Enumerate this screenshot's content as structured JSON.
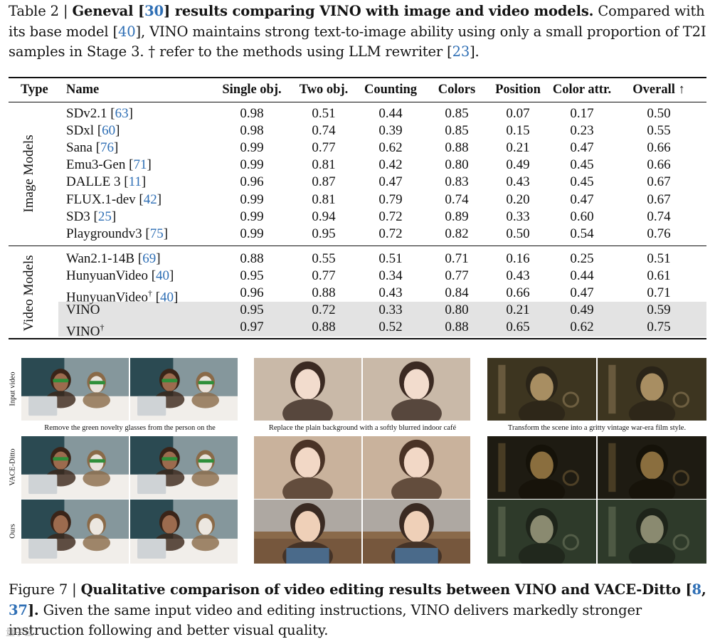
{
  "table_caption": {
    "label": "Table 2 | ",
    "bold_a": "Geneval [",
    "bold_cite": "30",
    "bold_b": "] results comparing VINO with image and video models.",
    "text_a": " Compared with its base model [",
    "cite_a": "40",
    "text_b": "], VINO maintains strong text-to-image ability using only a small proportion of T2I samples in Stage 3. † refer to the methods using LLM rewriter [",
    "cite_b": "23",
    "text_c": "]."
  },
  "table": {
    "headers": [
      "Type",
      "Name",
      "Single obj.",
      "Two obj.",
      "Counting",
      "Colors",
      "Position",
      "Color attr.",
      "Overall ↑"
    ],
    "groups": [
      {
        "label": "Image Models",
        "rows": [
          {
            "name": "SDv2.1",
            "cite": "63",
            "sup": "",
            "values": [
              "0.98",
              "0.51",
              "0.44",
              "0.85",
              "0.07",
              "0.17",
              "0.50"
            ]
          },
          {
            "name": "SDxl",
            "cite": "60",
            "sup": "",
            "values": [
              "0.98",
              "0.74",
              "0.39",
              "0.85",
              "0.15",
              "0.23",
              "0.55"
            ]
          },
          {
            "name": "Sana",
            "cite": "76",
            "sup": "",
            "values": [
              "0.99",
              "0.77",
              "0.62",
              "0.88",
              "0.21",
              "0.47",
              "0.66"
            ]
          },
          {
            "name": "Emu3-Gen",
            "cite": "71",
            "sup": "",
            "values": [
              "0.99",
              "0.81",
              "0.42",
              "0.80",
              "0.49",
              "0.45",
              "0.66"
            ]
          },
          {
            "name": "DALLE 3",
            "cite": "11",
            "sup": "",
            "values": [
              "0.96",
              "0.87",
              "0.47",
              "0.83",
              "0.43",
              "0.45",
              "0.67"
            ]
          },
          {
            "name": "FLUX.1-dev",
            "cite": "42",
            "sup": "",
            "values": [
              "0.99",
              "0.81",
              "0.79",
              "0.74",
              "0.20",
              "0.47",
              "0.67"
            ]
          },
          {
            "name": "SD3",
            "cite": "25",
            "sup": "",
            "values": [
              "0.99",
              "0.94",
              "0.72",
              "0.89",
              "0.33",
              "0.60",
              "0.74"
            ]
          },
          {
            "name": "Playgroundv3",
            "cite": "75",
            "sup": "",
            "values": [
              "0.99",
              "0.95",
              "0.72",
              "0.82",
              "0.50",
              "0.54",
              "0.76"
            ]
          }
        ]
      },
      {
        "label": "Video Models",
        "rows": [
          {
            "name": "Wan2.1-14B",
            "cite": "69",
            "sup": "",
            "values": [
              "0.88",
              "0.55",
              "0.51",
              "0.71",
              "0.16",
              "0.25",
              "0.51"
            ]
          },
          {
            "name": "HunyuanVideo",
            "cite": "40",
            "sup": "",
            "values": [
              "0.95",
              "0.77",
              "0.34",
              "0.77",
              "0.43",
              "0.44",
              "0.61"
            ]
          },
          {
            "name": "HunyuanVideo",
            "cite": "40",
            "sup": "†",
            "values": [
              "0.96",
              "0.88",
              "0.43",
              "0.84",
              "0.66",
              "0.47",
              "0.71"
            ]
          },
          {
            "name": "VINO",
            "cite": "",
            "sup": "",
            "highlight": true,
            "values": [
              "0.95",
              "0.72",
              "0.33",
              "0.80",
              "0.21",
              "0.49",
              "0.59"
            ]
          },
          {
            "name": "VINO",
            "cite": "",
            "sup": "†",
            "highlight": true,
            "values": [
              "0.97",
              "0.88",
              "0.52",
              "0.88",
              "0.65",
              "0.62",
              "0.75"
            ]
          }
        ]
      }
    ]
  },
  "figure": {
    "row_labels": [
      "Input video",
      "VACE-Ditto",
      "Ours"
    ],
    "instructions": [
      "Remove the green novelty glasses from the person on the",
      "Replace the plain background with a softly blurred indoor café",
      "Transform the scene into a gritty vintage war-era film style."
    ]
  },
  "figure_caption": {
    "label": "Figure 7 | ",
    "bold_a": "Qualitative comparison of video editing results between VINO and VACE-Ditto [",
    "cite_a": "8",
    "sep": ", ",
    "cite_b": "37",
    "bold_b": "].",
    "text": " Given the same input video and editing instructions, VINO delivers markedly stronger instruction following and better visual quality."
  },
  "watermark": "量子位"
}
